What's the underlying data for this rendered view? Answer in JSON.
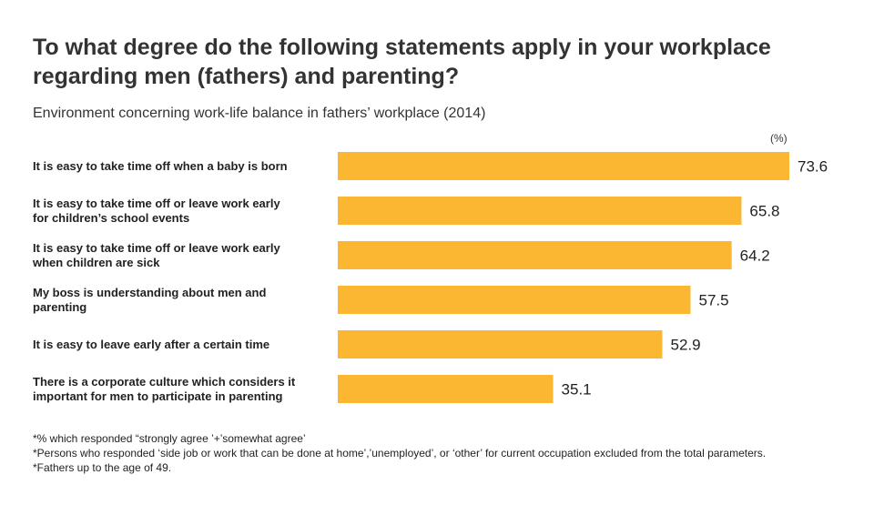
{
  "title_line1": "To what degree do the following statements apply in your workplace",
  "title_line2": "regarding men (fathers) and parenting?",
  "subtitle": "Environment concerning work-life balance in fathers’ workplace (2014)",
  "unit": "(%)",
  "colors": {
    "bar": "#fbb731",
    "text": "#222222"
  },
  "chart_data": {
    "type": "bar",
    "orientation": "horizontal",
    "categories": [
      [
        "It is easy to take time off when a baby is born"
      ],
      [
        "It is easy to take time off or leave work early",
        "for children’s school events"
      ],
      [
        "It is easy to take time off or leave work early",
        "when children are sick"
      ],
      [
        "My boss is understanding about men and",
        "parenting"
      ],
      [
        "It is easy to leave early after a certain time"
      ],
      [
        "There is a corporate culture which considers it",
        "important for men to participate in parenting"
      ]
    ],
    "values": [
      73.6,
      65.8,
      64.2,
      57.5,
      52.9,
      35.1
    ],
    "value_labels": [
      "73.6",
      "65.8",
      "64.2",
      "57.5",
      "52.9",
      "35.1"
    ],
    "xlim": [
      0,
      73.6
    ]
  },
  "notes": [
    "*% which responded “strongly agree ’+’somewhat agree’",
    "*Persons who responded ‘side job or work that can be done at home’,’unemployed’,  or ‘other’ for current occupation excluded from the total parameters.",
    "*Fathers up to the age of 49."
  ]
}
